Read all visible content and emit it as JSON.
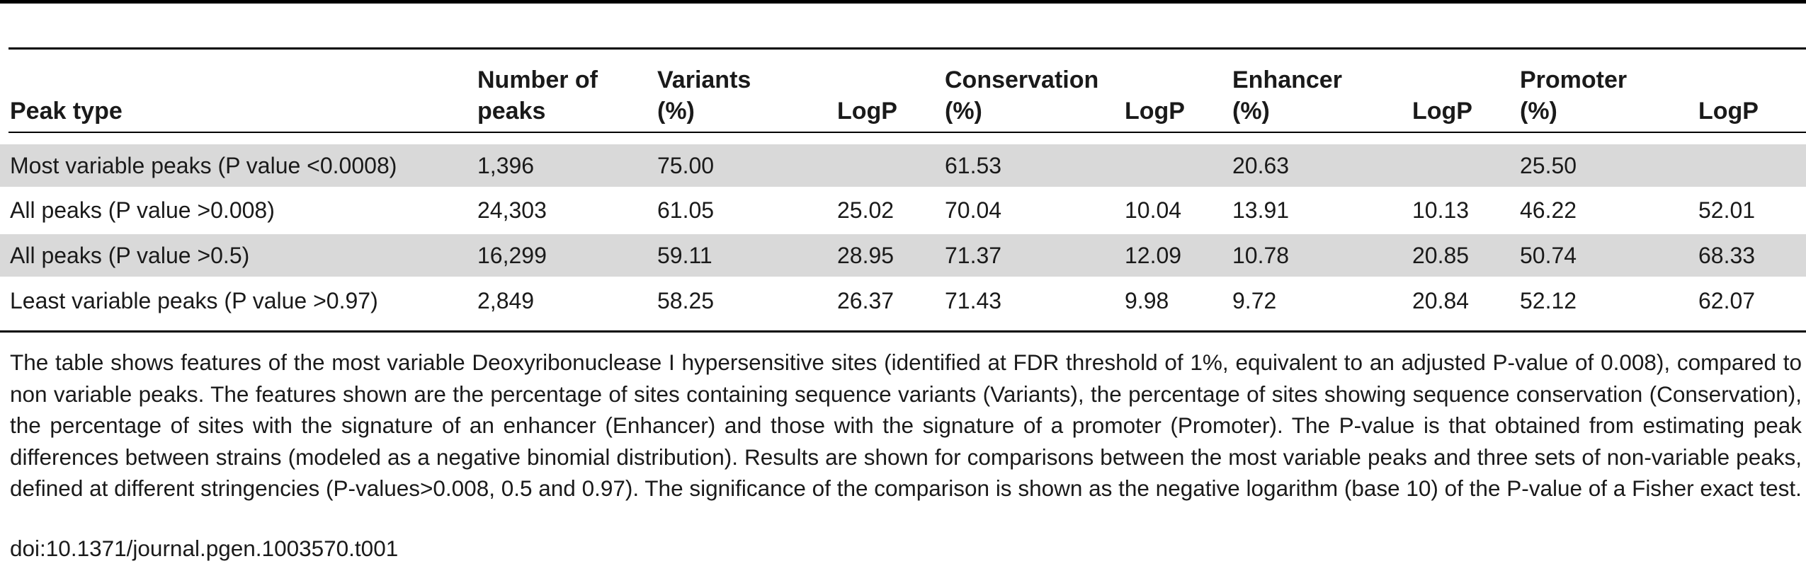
{
  "table": {
    "headers": [
      "Peak type",
      "Number of\npeaks",
      "Variants\n(%)",
      "LogP",
      "Conservation\n(%)",
      "LogP",
      "Enhancer\n(%)",
      "LogP",
      "Promoter\n(%)",
      "LogP"
    ],
    "rows": [
      [
        "Most variable peaks (P value <0.0008)",
        "1,396",
        "75.00",
        "",
        "61.53",
        "",
        "20.63",
        "",
        "25.50",
        ""
      ],
      [
        "All peaks (P value >0.008)",
        "24,303",
        "61.05",
        "25.02",
        "70.04",
        "10.04",
        "13.91",
        "10.13",
        "46.22",
        "52.01"
      ],
      [
        "All peaks (P value >0.5)",
        "16,299",
        "59.11",
        "28.95",
        "71.37",
        "12.09",
        "10.78",
        "20.85",
        "50.74",
        "68.33"
      ],
      [
        "Least variable peaks (P value >0.97)",
        "2,849",
        "58.25",
        "26.37",
        "71.43",
        "9.98",
        "9.72",
        "20.84",
        "52.12",
        "62.07"
      ]
    ]
  },
  "caption": "The table shows features of the most variable Deoxyribonuclease I hypersensitive sites (identified at FDR threshold of 1%, equivalent to an adjusted P-value of 0.008), compared to non variable peaks. The features shown are the percentage of sites containing sequence variants (Variants), the percentage of sites showing sequence conservation (Conservation), the percentage of sites with the signature of an enhancer (Enhancer) and those with the signature of a promoter (Promoter). The P-value is that obtained from estimating peak differences between strains (modeled as a negative binomial distribution). Results are shown for comparisons between the most variable peaks and three sets of non-variable peaks, defined at different stringencies (P-values>0.008, 0.5 and 0.97). The significance of the comparison is shown as the negative logarithm (base 10) of the P-value of a Fisher exact test.",
  "doi": "doi:10.1371/journal.pgen.1003570.t001"
}
